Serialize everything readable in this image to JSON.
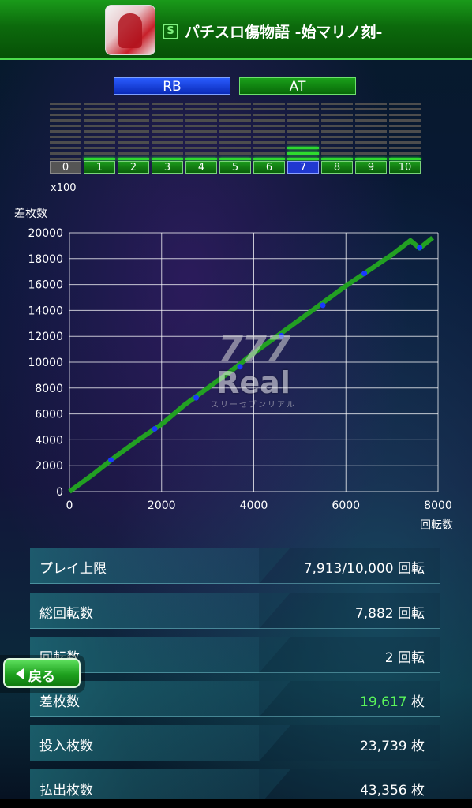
{
  "header": {
    "title": "パチスロ傷物語 -始マリノ刻-",
    "badge": "S",
    "icon": "game-character-icon"
  },
  "tabs": [
    {
      "label": "RB",
      "color": "#2a5cff"
    },
    {
      "label": "AT",
      "color": "#1aa01a"
    }
  ],
  "settings": {
    "labels": [
      "0",
      "1",
      "2",
      "3",
      "4",
      "5",
      "6",
      "7",
      "8",
      "9",
      "10"
    ],
    "selected": "7",
    "levels": [
      0,
      1,
      1,
      1,
      1,
      1,
      1,
      3,
      1,
      1,
      1
    ],
    "unit": "x100"
  },
  "chart_data": {
    "type": "line",
    "ylabel": "差枚数",
    "xlabel": "回転数",
    "xlim": [
      0,
      8000
    ],
    "ylim": [
      0,
      20000
    ],
    "xticks": [
      0,
      2000,
      4000,
      6000,
      8000
    ],
    "yticks": [
      0,
      2000,
      4000,
      6000,
      8000,
      10000,
      12000,
      14000,
      16000,
      18000,
      20000
    ],
    "grid": true,
    "series": [
      {
        "color": "#22a022",
        "points": [
          [
            0,
            0
          ],
          [
            500,
            1300
          ],
          [
            1000,
            2700
          ],
          [
            1500,
            4000
          ],
          [
            2000,
            5200
          ],
          [
            2500,
            6700
          ],
          [
            3000,
            8000
          ],
          [
            3500,
            9300
          ],
          [
            4000,
            10700
          ],
          [
            4500,
            12000
          ],
          [
            5000,
            13300
          ],
          [
            5500,
            14600
          ],
          [
            6000,
            15900
          ],
          [
            6500,
            17100
          ],
          [
            7000,
            18300
          ],
          [
            7400,
            19400
          ],
          [
            7600,
            18800
          ],
          [
            7882,
            19617
          ]
        ]
      }
    ],
    "markers": {
      "color": "#1a3aff",
      "points": [
        [
          900,
          2450
        ],
        [
          1850,
          4850
        ],
        [
          2750,
          7250
        ],
        [
          3700,
          9650
        ],
        [
          4600,
          12050
        ],
        [
          5500,
          14400
        ],
        [
          6400,
          16850
        ],
        [
          7600,
          18850
        ]
      ]
    }
  },
  "watermark": {
    "top": "777",
    "main": "Real",
    "sub": "スリーセブンリアル"
  },
  "info": [
    {
      "label": "プレイ上限",
      "value": "7,913/10,000 回転"
    },
    {
      "label": "総回転数",
      "value": "7,882 回転"
    },
    {
      "label": "回転数",
      "value": "2 回転"
    },
    {
      "label": "差枚数",
      "value_green": "19,617",
      "unit": " 枚"
    },
    {
      "label": "投入枚数",
      "value": "23,739 枚"
    },
    {
      "label": "払出枚数",
      "value": "43,356 枚"
    }
  ],
  "back_button": {
    "label": "戻る",
    "icon": "left-arrow-icon"
  }
}
